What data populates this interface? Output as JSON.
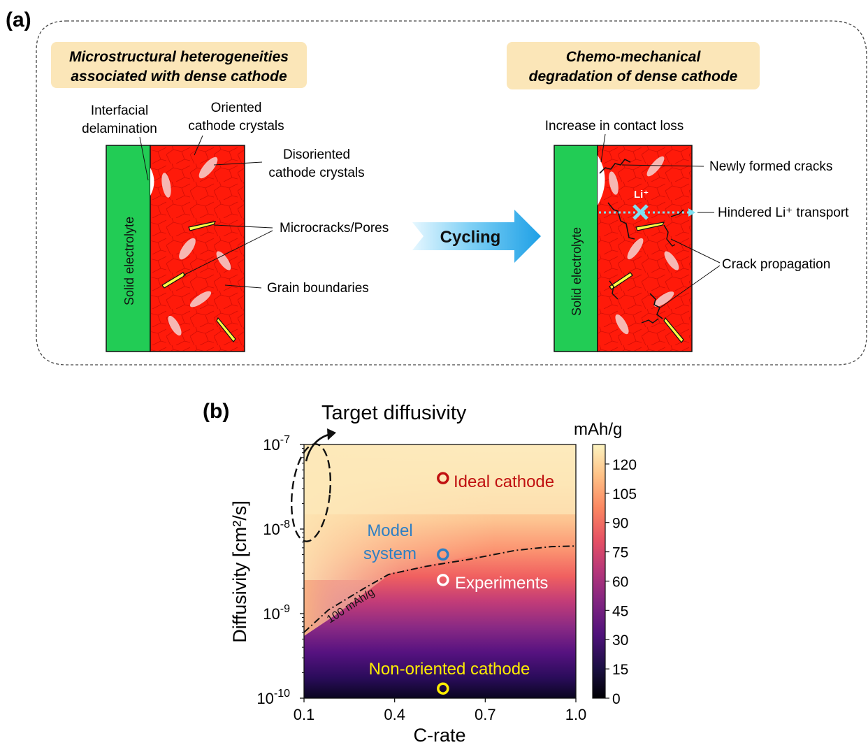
{
  "panel_a": {
    "label": "(a)",
    "left_title": [
      "Microstructural heterogeneities",
      "associated with dense cathode"
    ],
    "right_title": [
      "Chemo-mechanical",
      "degradation of dense cathode"
    ],
    "left_annotations": {
      "interfacial_delamination": [
        "Interfacial",
        "delamination"
      ],
      "oriented_crystals": [
        "Oriented",
        "cathode crystals"
      ],
      "disoriented_crystals": [
        "Disoriented",
        "cathode crystals"
      ],
      "microcracks": "Microcracks/Pores",
      "grain_boundaries": "Grain boundaries"
    },
    "right_annotations": {
      "contact_loss": "Increase in contact loss",
      "new_cracks": "Newly formed cracks",
      "hindered_transport": "Hindered Li⁺ transport",
      "crack_propagation": "Crack propagation",
      "li_ion": "Li⁺"
    },
    "solid_electrolyte": "Solid electrolyte",
    "cycling_label": "Cycling",
    "colors": {
      "electrolyte": "#22cc55",
      "cathode": "#ff1a0a",
      "title_box": "#fbe6b8",
      "crack_fill": "#ffff44",
      "li_marker": "#7fe0f0"
    }
  },
  "panel_b": {
    "label": "(b)",
    "title": "Target diffusivity",
    "colorbar_label": "mAh/g",
    "contour_label": "100 mAh/g",
    "chart_data": {
      "type": "heatmap",
      "xlabel": "C-rate",
      "ylabel": "Diffusivity [cm²/s]",
      "x_ticks": [
        "0.1",
        "0.4",
        "0.7",
        "1.0"
      ],
      "y_ticks": [
        {
          "base": "10",
          "exp": "-7"
        },
        {
          "base": "10",
          "exp": "-8"
        },
        {
          "base": "10",
          "exp": "-9"
        },
        {
          "base": "10",
          "exp": "-10"
        }
      ],
      "xlim": [
        0.1,
        1.0
      ],
      "ylim": [
        1e-10,
        1e-07
      ],
      "yscale": "log",
      "colorbar": {
        "min": 0,
        "max": 130,
        "ticks": [
          "0",
          "15",
          "30",
          "45",
          "60",
          "75",
          "90",
          "105",
          "120"
        ]
      },
      "contour_100": [
        {
          "x": 0.1,
          "y": 6e-10
        },
        {
          "x": 0.18,
          "y": 1.1e-09
        },
        {
          "x": 0.3,
          "y": 2e-09
        },
        {
          "x": 0.38,
          "y": 2.9e-09
        },
        {
          "x": 0.5,
          "y": 3.6e-09
        },
        {
          "x": 0.65,
          "y": 4.4e-09
        },
        {
          "x": 0.8,
          "y": 5.6e-09
        },
        {
          "x": 0.92,
          "y": 6.2e-09
        },
        {
          "x": 1.0,
          "y": 6.3e-09
        }
      ],
      "points": [
        {
          "name": "Ideal cathode",
          "x": 0.56,
          "y": 4e-08,
          "color": "#c01010"
        },
        {
          "name": "Model system",
          "x": 0.56,
          "y": 5e-09,
          "color": "#2e7fc4"
        },
        {
          "name": "Experiments",
          "x": 0.56,
          "y": 2.5e-09,
          "color": "#ffffff"
        },
        {
          "name": "Non-oriented cathode",
          "x": 0.56,
          "y": 1.3e-10,
          "color": "#ffee00"
        }
      ],
      "point_labels": {
        "ideal": "Ideal cathode",
        "model": [
          "Model",
          "system"
        ],
        "experiments": "Experiments",
        "non_oriented": "Non-oriented cathode"
      }
    }
  }
}
